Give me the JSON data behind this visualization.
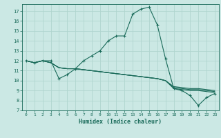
{
  "xlabel": "Humidex (Indice chaleur)",
  "bg_color": "#cbe8e4",
  "grid_color": "#b0d5cf",
  "line_color": "#1a6b5a",
  "xlim": [
    -0.5,
    23.5
  ],
  "ylim": [
    7,
    17.7
  ],
  "xticks": [
    0,
    1,
    2,
    3,
    4,
    5,
    6,
    7,
    8,
    9,
    10,
    11,
    12,
    13,
    14,
    15,
    16,
    17,
    18,
    19,
    20,
    21,
    22,
    23
  ],
  "yticks": [
    7,
    8,
    9,
    10,
    11,
    12,
    13,
    14,
    15,
    16,
    17
  ],
  "series_main": [
    12.0,
    11.8,
    12.0,
    12.0,
    10.2,
    10.6,
    11.2,
    12.0,
    12.5,
    13.0,
    14.0,
    14.5,
    14.5,
    16.7,
    17.2,
    17.4,
    15.6,
    12.2,
    9.2,
    9.0,
    8.5,
    7.5,
    8.3,
    8.7
  ],
  "series_flat": [
    [
      12.0,
      11.8,
      12.0,
      11.8,
      11.3,
      11.2,
      11.2,
      11.1,
      11.0,
      10.9,
      10.8,
      10.7,
      10.6,
      10.5,
      10.4,
      10.3,
      10.2,
      10.0,
      9.2,
      9.1,
      9.0,
      9.0,
      8.9,
      8.8
    ],
    [
      12.0,
      11.8,
      12.0,
      11.8,
      11.3,
      11.2,
      11.2,
      11.1,
      11.0,
      10.9,
      10.8,
      10.7,
      10.6,
      10.5,
      10.4,
      10.3,
      10.2,
      10.0,
      9.3,
      9.2,
      9.1,
      9.1,
      9.0,
      8.9
    ],
    [
      12.0,
      11.8,
      12.0,
      11.8,
      11.3,
      11.2,
      11.2,
      11.1,
      11.0,
      10.9,
      10.8,
      10.7,
      10.6,
      10.5,
      10.4,
      10.3,
      10.2,
      10.0,
      9.4,
      9.3,
      9.2,
      9.2,
      9.1,
      9.0
    ]
  ]
}
